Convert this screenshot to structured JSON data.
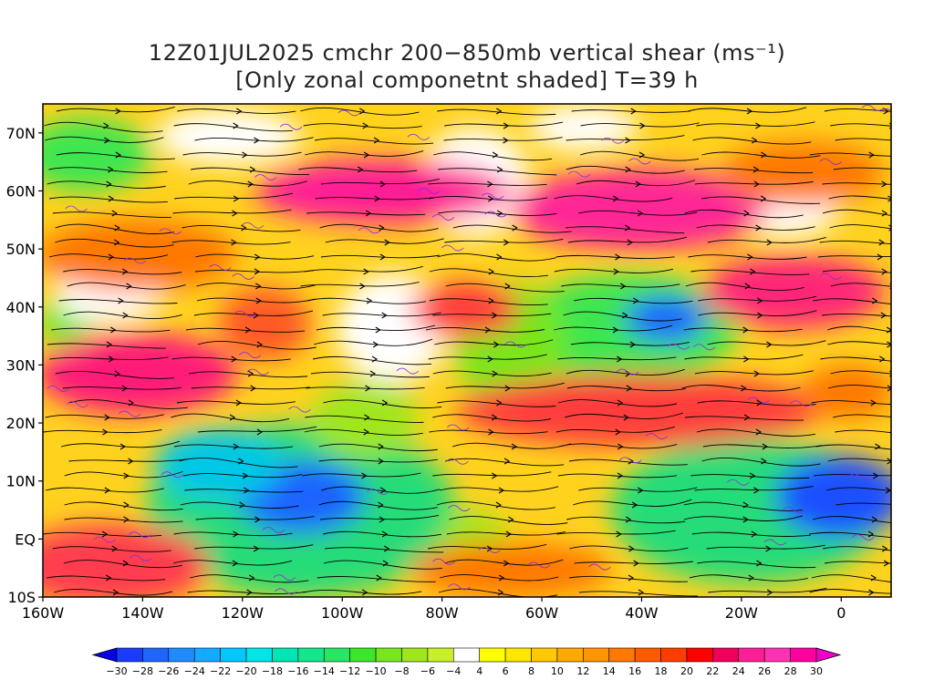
{
  "title": {
    "line1": "12Z01JUL2025 cmchr 200−850mb vertical shear (ms⁻¹)",
    "line2": "[Only zonal componetnt shaded] T=39 h"
  },
  "map": {
    "lon_range": [
      -160,
      10
    ],
    "lat_range": [
      -10,
      75
    ],
    "lat_ticks": [
      {
        "lat": 70,
        "label": "70N"
      },
      {
        "lat": 60,
        "label": "60N"
      },
      {
        "lat": 50,
        "label": "50N"
      },
      {
        "lat": 40,
        "label": "40N"
      },
      {
        "lat": 30,
        "label": "30N"
      },
      {
        "lat": 20,
        "label": "20N"
      },
      {
        "lat": 10,
        "label": "10N"
      },
      {
        "lat": 0,
        "label": "EQ"
      },
      {
        "lat": -10,
        "label": "10S"
      }
    ],
    "lon_ticks": [
      {
        "lon": -160,
        "label": "160W"
      },
      {
        "lon": -140,
        "label": "140W"
      },
      {
        "lon": -120,
        "label": "120W"
      },
      {
        "lon": -100,
        "label": "100W"
      },
      {
        "lon": -80,
        "label": "80W"
      },
      {
        "lon": -60,
        "label": "60W"
      },
      {
        "lon": -40,
        "label": "40W"
      },
      {
        "lon": -20,
        "label": "20W"
      },
      {
        "lon": 0,
        "label": "0"
      }
    ]
  },
  "colorbar": {
    "labels": [
      "−30",
      "−28",
      "−26",
      "−24",
      "−22",
      "−20",
      "−18",
      "−16",
      "−14",
      "−12",
      "−10",
      "−8",
      "−6",
      "−4",
      "4",
      "6",
      "8",
      "10",
      "12",
      "14",
      "16",
      "18",
      "20",
      "22",
      "24",
      "26",
      "28",
      "30"
    ],
    "colors": [
      "#0a00e6",
      "#1a3cff",
      "#1e64ff",
      "#1e8cff",
      "#14aaff",
      "#00c8ff",
      "#00e6e6",
      "#00e6b4",
      "#14e68c",
      "#28e664",
      "#3ce628",
      "#78e61e",
      "#a0e61e",
      "#c8f028",
      "#ffffff",
      "#ffff00",
      "#ffe600",
      "#ffc800",
      "#ffaa00",
      "#ff9600",
      "#ff7800",
      "#ff5a00",
      "#ff3c00",
      "#ff0000",
      "#f0005a",
      "#ff1e96",
      "#ff32b4",
      "#ff00a0",
      "#f000c8"
    ]
  }
}
